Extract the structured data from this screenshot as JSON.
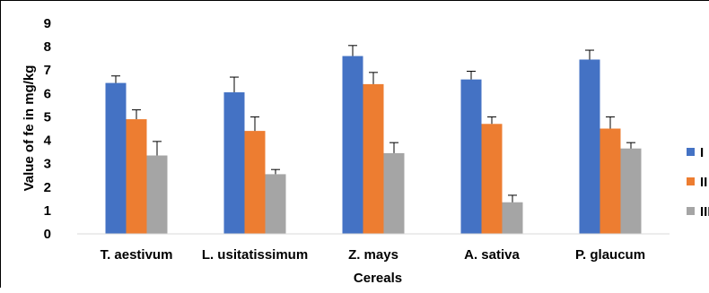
{
  "chart_data": {
    "type": "bar",
    "title": "",
    "xlabel": "Cereals",
    "ylabel": "Value of fe in mg/kg",
    "ylim": [
      0,
      9
    ],
    "yticks": [
      0,
      1,
      2,
      3,
      4,
      5,
      6,
      7,
      8,
      9
    ],
    "grid": false,
    "legend_position": "right",
    "categories": [
      "T. aestivum",
      "L. usitatissimum",
      "Z. mays",
      "A. sativa",
      "P. glaucum"
    ],
    "series": [
      {
        "name": "I",
        "color": "#4472C4",
        "values": [
          6.45,
          6.05,
          7.6,
          6.6,
          7.45
        ],
        "errors": [
          0.3,
          0.65,
          0.45,
          0.35,
          0.4
        ]
      },
      {
        "name": "II",
        "color": "#ED7D31",
        "values": [
          4.9,
          4.4,
          6.4,
          4.7,
          4.5
        ],
        "errors": [
          0.4,
          0.6,
          0.5,
          0.3,
          0.5
        ]
      },
      {
        "name": "III",
        "color": "#A5A5A5",
        "values": [
          3.35,
          2.55,
          3.45,
          1.35,
          3.65
        ],
        "errors": [
          0.6,
          0.2,
          0.45,
          0.3,
          0.25
        ]
      }
    ]
  }
}
